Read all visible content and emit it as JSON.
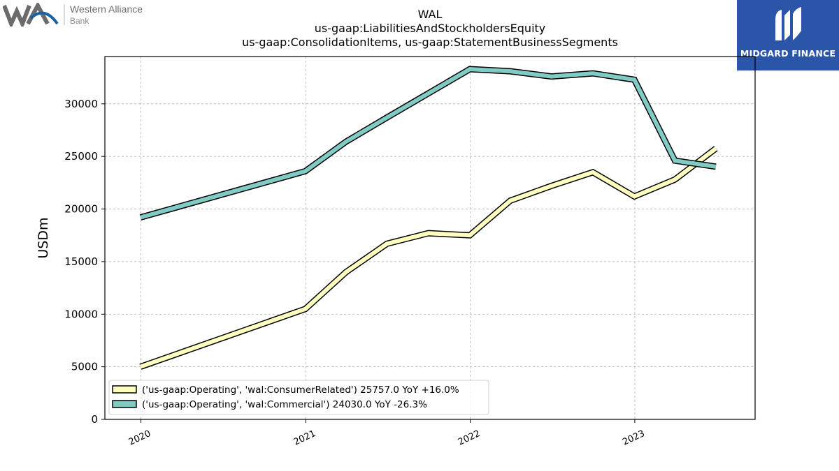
{
  "logos": {
    "left_line1": "Western Alliance",
    "left_line2": "Bank",
    "right_brand": "MIDGARD FINANCE"
  },
  "chart_data": {
    "type": "line",
    "title_lines": [
      "WAL",
      "us-gaap:LiabilitiesAndStockholdersEquity",
      "us-gaap:ConsolidationItems, us-gaap:StatementBusinessSegments"
    ],
    "ylabel": "USDm",
    "xlabel": "",
    "ylim": [
      0,
      34500
    ],
    "yticks": [
      0,
      5000,
      10000,
      15000,
      20000,
      25000,
      30000
    ],
    "xlim": [
      "2019-10-13",
      "2023-09-25"
    ],
    "xticks": [
      {
        "date": "2020-01-01",
        "label": "2020"
      },
      {
        "date": "2021-01-01",
        "label": "2021"
      },
      {
        "date": "2022-01-01",
        "label": "2022"
      },
      {
        "date": "2023-01-01",
        "label": "2023"
      }
    ],
    "grid": true,
    "legend_position": "lower-left",
    "series": [
      {
        "name": "('us-gaap:Operating', 'wal:ConsumerRelated') 25757.0 YoY +16.0%",
        "color": "#ffffbf",
        "points": [
          [
            "2019-12-31",
            5000
          ],
          [
            "2020-12-31",
            10500
          ],
          [
            "2021-03-31",
            14000
          ],
          [
            "2021-06-30",
            16700
          ],
          [
            "2021-09-30",
            17700
          ],
          [
            "2021-12-31",
            17500
          ],
          [
            "2022-03-31",
            20800
          ],
          [
            "2022-06-30",
            22200
          ],
          [
            "2022-09-30",
            23500
          ],
          [
            "2022-12-31",
            21200
          ],
          [
            "2023-03-31",
            22800
          ],
          [
            "2023-06-30",
            25757
          ]
        ]
      },
      {
        "name": "('us-gaap:Operating', 'wal:Commercial') 24030.0 YoY -26.3%",
        "color": "#80cbc4",
        "points": [
          [
            "2019-12-31",
            19200
          ],
          [
            "2020-12-31",
            23600
          ],
          [
            "2021-03-31",
            26400
          ],
          [
            "2021-06-30",
            28700
          ],
          [
            "2021-09-30",
            31000
          ],
          [
            "2021-12-31",
            33300
          ],
          [
            "2022-03-31",
            33100
          ],
          [
            "2022-06-30",
            32600
          ],
          [
            "2022-09-30",
            32900
          ],
          [
            "2022-12-31",
            32300
          ],
          [
            "2023-03-31",
            24600
          ],
          [
            "2023-06-30",
            24030
          ]
        ]
      }
    ]
  }
}
